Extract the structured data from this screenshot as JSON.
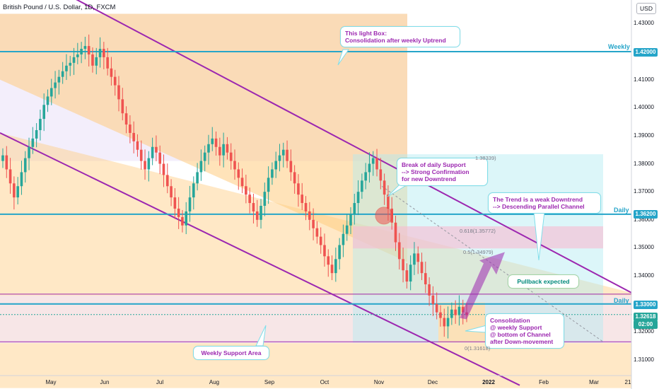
{
  "header": {
    "title": "British Pound / U.S. Dollar, 1D, FXCM",
    "currency": "USD"
  },
  "annotations": {
    "light_box": [
      "This light Box:",
      "Consolidation after weekly Uptrend"
    ],
    "break_support": [
      "Break of daily Support",
      "--> Strong Confirmation",
      "for new Downtrend"
    ],
    "weak_downtrend": [
      "The Trend is a weak Downtrend",
      "--> Descending Parallel Channel"
    ],
    "pullback": "Pullback expected",
    "consolidation": [
      "Consolidation",
      "@ weekly Support",
      "@ bottom of Channel",
      "after Down-movement"
    ],
    "weekly_support": "Weekly Support Area"
  },
  "levels": {
    "weekly": {
      "name": "Weekly",
      "price_label": "1.42000"
    },
    "daily_upper": {
      "name": "Daily",
      "price_label": "1.36200"
    },
    "daily_lower": {
      "name": "Daily",
      "price_label": "1.33000"
    }
  },
  "current_price": {
    "value": "1.32618",
    "countdown": "02:00"
  },
  "fib": {
    "top": "1.38339)",
    "f618": "0.618(1.35772)",
    "f5": "0.5(1.34979)",
    "f0": "0(1.31618)"
  },
  "colors": {
    "bull": "#26a69a",
    "bear": "#ef5350",
    "channel": "#9c27b0",
    "level": "#26a5c9",
    "orange_fill": "#ffcc80",
    "lavender_fill": "#ede7f6",
    "cyan_fill": "#b2ebf2"
  },
  "chart_data": {
    "type": "candlestick",
    "title": "British Pound / U.S. Dollar, 1D, FXCM",
    "ylim": [
      1.3,
      1.44
    ],
    "y_ticks": [
      "1.43000",
      "1.42000",
      "1.41000",
      "1.40000",
      "1.39000",
      "1.38000",
      "1.37000",
      "1.36000",
      "1.35000",
      "1.34000",
      "1.33000",
      "1.32000",
      "1.31000"
    ],
    "x_ticks": [
      "May",
      "Jun",
      "Jul",
      "Aug",
      "Sep",
      "Oct",
      "Nov",
      "Dec",
      "2022",
      "Feb",
      "Mar",
      "21"
    ],
    "closes": [
      1.383,
      1.378,
      1.373,
      1.368,
      1.372,
      1.377,
      1.382,
      1.386,
      1.389,
      1.392,
      1.396,
      1.401,
      1.404,
      1.407,
      1.409,
      1.411,
      1.413,
      1.415,
      1.416,
      1.418,
      1.419,
      1.421,
      1.422,
      1.419,
      1.415,
      1.418,
      1.421,
      1.418,
      1.414,
      1.411,
      1.408,
      1.403,
      1.398,
      1.394,
      1.391,
      1.388,
      1.385,
      1.381,
      1.378,
      1.382,
      1.386,
      1.384,
      1.38,
      1.376,
      1.372,
      1.368,
      1.364,
      1.361,
      1.358,
      1.363,
      1.368,
      1.373,
      1.377,
      1.381,
      1.384,
      1.387,
      1.389,
      1.386,
      1.383,
      1.387,
      1.384,
      1.381,
      1.378,
      1.375,
      1.372,
      1.369,
      1.366,
      1.363,
      1.36,
      1.365,
      1.37,
      1.375,
      1.378,
      1.381,
      1.383,
      1.385,
      1.381,
      1.377,
      1.373,
      1.369,
      1.366,
      1.363,
      1.36,
      1.357,
      1.354,
      1.351,
      1.347,
      1.344,
      1.341,
      1.346,
      1.351,
      1.355,
      1.358,
      1.362,
      1.366,
      1.37,
      1.374,
      1.377,
      1.38,
      1.382,
      1.378,
      1.374,
      1.369,
      1.364,
      1.359,
      1.352,
      1.346,
      1.342,
      1.338,
      1.344,
      1.348,
      1.345,
      1.341,
      1.337,
      1.333,
      1.33,
      1.327,
      1.325,
      1.322,
      1.325,
      1.328,
      1.326,
      1.329,
      1.327,
      1.326
    ]
  }
}
